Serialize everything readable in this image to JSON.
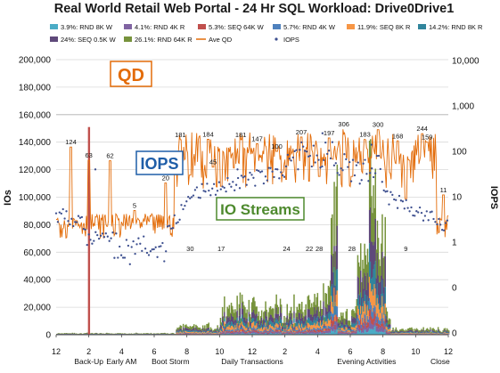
{
  "chart_data": {
    "type": "area",
    "title": "Real World Retail Web Portal - 24 Hr SQL Workload: Drive0Drive1",
    "ylabel": "IOs",
    "y2label": "IOPS",
    "ylim": [
      0,
      200000
    ],
    "yticks": [
      "0",
      "20,000",
      "40,000",
      "60,000",
      "80,000",
      "100,000",
      "120,000",
      "140,000",
      "160,000",
      "180,000",
      "200,000"
    ],
    "y2ticks": [
      {
        "label": "10,000",
        "value": 10000
      },
      {
        "label": "1,000",
        "value": 1000
      },
      {
        "label": "100",
        "value": 100
      },
      {
        "label": "10",
        "value": 10
      },
      {
        "label": "1",
        "value": 1
      },
      {
        "label": "0",
        "value": 0.1
      },
      {
        "label": "0",
        "value": 0.01
      }
    ],
    "xticks": [
      "12",
      "2",
      "4",
      "6",
      "8",
      "10",
      "12",
      "2",
      "4",
      "6",
      "8",
      "10",
      "12"
    ],
    "xcategories": [
      {
        "label": "Back-Up",
        "at": 2
      },
      {
        "label": "Early AM",
        "at": 4
      },
      {
        "label": "Boot Storm",
        "at": 7
      },
      {
        "label": "Daily Transactions",
        "at": 12
      },
      {
        "label": "Evening Activities",
        "at": 19
      },
      {
        "label": "Close",
        "at": 23.5
      }
    ],
    "grid": true,
    "legend_position": "top",
    "series": [
      {
        "name": "3.9%: RND 8K W",
        "color": "#4BACC6",
        "kind": "area"
      },
      {
        "name": "4.1%: RND 4K R",
        "color": "#8064A2",
        "kind": "area"
      },
      {
        "name": "5.3%: SEQ 64K W",
        "color": "#C0504D",
        "kind": "area"
      },
      {
        "name": "5.7%: RND 4K W",
        "color": "#4F81BD",
        "kind": "area"
      },
      {
        "name": "11.9%: SEQ 8K R",
        "color": "#F79646",
        "kind": "area"
      },
      {
        "name": "14.2%: RND 8K R",
        "color": "#31859C",
        "kind": "area"
      },
      {
        "name": "24%: SEQ 0.5K W",
        "color": "#5F497A",
        "kind": "area"
      },
      {
        "name": "26.1%: RND 64K R",
        "color": "#77933C",
        "kind": "area"
      },
      {
        "name": "Ave QD",
        "color": "#E36C09",
        "kind": "line"
      },
      {
        "name": "IOPS",
        "color": "#3D4F8F",
        "kind": "scatter"
      }
    ],
    "spikes": [
      {
        "series": "5.3%: SEQ 64K W",
        "x": 2.0,
        "value": 151000
      }
    ],
    "qd_labels": [
      {
        "x": 0.9,
        "value": "124",
        "side": "above"
      },
      {
        "x": 2.0,
        "value": "63",
        "side": "above"
      },
      {
        "x": 3.3,
        "value": "62",
        "side": "above"
      },
      {
        "x": 4.8,
        "value": "5",
        "side": "above"
      },
      {
        "x": 6.7,
        "value": "20",
        "side": "above"
      },
      {
        "x": 7.6,
        "value": "181",
        "side": "above"
      },
      {
        "x": 8.2,
        "value": "30",
        "side": "below"
      },
      {
        "x": 9.3,
        "value": "184",
        "side": "above"
      },
      {
        "x": 9.6,
        "value": "45",
        "side": "above"
      },
      {
        "x": 10.1,
        "value": "17",
        "side": "below"
      },
      {
        "x": 11.3,
        "value": "181",
        "side": "above"
      },
      {
        "x": 12.3,
        "value": "147",
        "side": "above"
      },
      {
        "x": 13.5,
        "value": "100",
        "side": "above"
      },
      {
        "x": 14.1,
        "value": "24",
        "side": "below"
      },
      {
        "x": 15.0,
        "value": "207",
        "side": "above"
      },
      {
        "x": 15.5,
        "value": "22",
        "side": "below"
      },
      {
        "x": 16.1,
        "value": "28",
        "side": "below"
      },
      {
        "x": 16.7,
        "value": "197",
        "side": "above"
      },
      {
        "x": 17.6,
        "value": "306",
        "side": "above"
      },
      {
        "x": 18.1,
        "value": "28",
        "side": "below"
      },
      {
        "x": 18.9,
        "value": "183",
        "side": "above"
      },
      {
        "x": 19.7,
        "value": "300",
        "side": "above"
      },
      {
        "x": 20.9,
        "value": "168",
        "side": "above"
      },
      {
        "x": 21.4,
        "value": "9",
        "side": "below"
      },
      {
        "x": 22.4,
        "value": "244",
        "side": "above"
      },
      {
        "x": 22.7,
        "value": "159",
        "side": "above"
      },
      {
        "x": 23.7,
        "value": "11",
        "side": "above"
      }
    ],
    "annotations": [
      {
        "text": "QD",
        "color": "#E36C09"
      },
      {
        "text": "IOPS",
        "color": "#1F5EA8"
      },
      {
        "text": "IO Streams",
        "color": "#4E8A2E"
      }
    ]
  }
}
